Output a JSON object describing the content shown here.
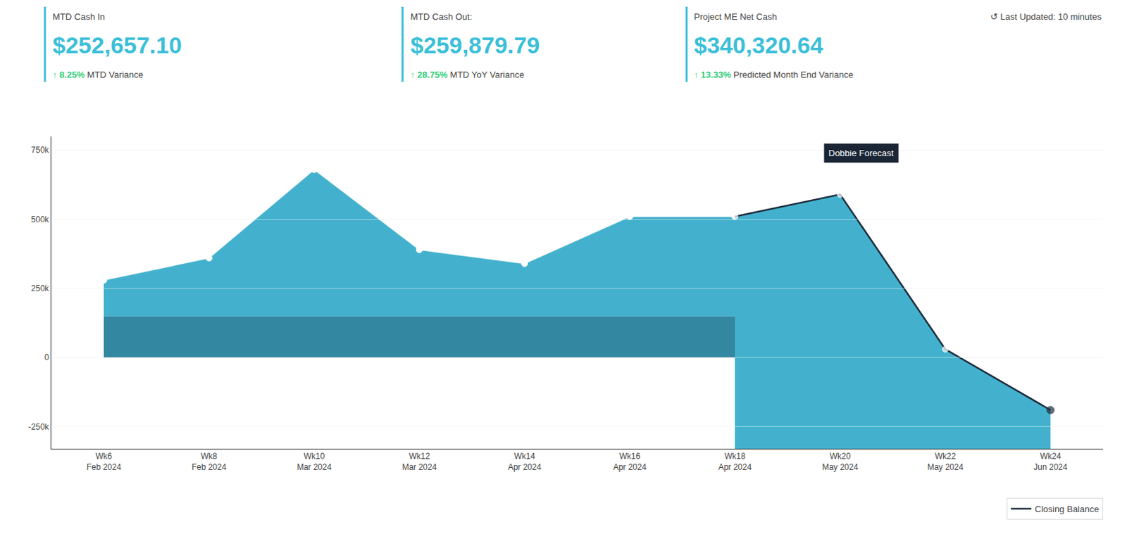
{
  "chart_data": {
    "type": "area",
    "subtitle": "↺ Last Updated: 10 minutes",
    "kpis": [
      {
        "title": "MTD Cash In",
        "value": "$252,657.10",
        "color": "#3bbfd8",
        "change": "↑ 8.25%",
        "change_label": "MTD Variance",
        "change_color": "#2ecc71"
      },
      {
        "title": "MTD Cash Out:",
        "value": "$259,879.79",
        "color": "#3bbfd8",
        "change": "↑ 28.75%",
        "change_label": "MTD YoY Variance",
        "change_color": "#2ecc71"
      },
      {
        "title": "Project ME Net Cash",
        "value": "$340,320.64",
        "color": "#3bbfd8",
        "change": "↑ 13.33%",
        "change_label": "Predicted Month End Variance",
        "change_color": "#2ecc71"
      }
    ],
    "categories": [
      "Wk6\nFeb 2024",
      "Wk8\nFeb 2024",
      "Wk10\nMar 2024",
      "Wk12\nMar 2024",
      "Wk14\nApr 2024",
      "Wk16\nApr 2024",
      "Wk18\nApr 2024",
      "Wk20\nMay 2024",
      "Wk22\nMay 2024",
      "Wk24\nJun 2024"
    ],
    "series": [
      {
        "type": "area",
        "color": "#1e7a96",
        "values": [
          150000,
          150000,
          150000,
          150000,
          150000,
          150000,
          150000,
          null,
          null,
          null
        ]
      },
      {
        "type": "area",
        "color": "#2fa8c8",
        "marker": "circle",
        "values": [
          280000,
          360000,
          680000,
          390000,
          340000,
          510000,
          510000,
          null,
          null,
          null
        ]
      },
      {
        "name": "Closing Balance",
        "type": "area",
        "color": "#1e2d3d",
        "marker": "circle",
        "values": [
          null,
          null,
          null,
          null,
          null,
          null,
          510000,
          590000,
          30000,
          -190000
        ]
      }
    ],
    "annotations": [
      {
        "text": "Dobbie Forecast",
        "x": 7.2,
        "y": 740000
      }
    ],
    "ylim": [
      -330000,
      800000
    ],
    "yticks": [
      {
        "value": -250000,
        "label": "-250k"
      },
      0,
      {
        "value": 250000,
        "label": "250k"
      },
      {
        "value": 500000,
        "label": "500k"
      },
      {
        "value": 750000,
        "label": "750k"
      }
    ],
    "grid": true,
    "legend": "bottom right"
  }
}
